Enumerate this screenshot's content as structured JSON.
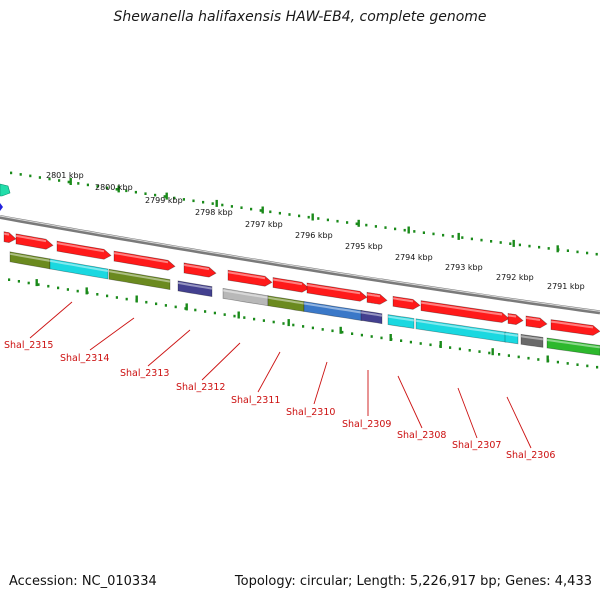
{
  "title": "Shewanella halifaxensis HAW-EB4, complete genome",
  "footer": {
    "accession": "Accession: NC_010334",
    "summary": "Topology: circular; Length: 5,226,917 bp; Genes: 4,433"
  },
  "colors": {
    "red": "#ff1a1a",
    "olive": "#6b8a1f",
    "cyan": "#1ad8e0",
    "navy": "#43408f",
    "gray": "#b8b8b8",
    "blue": "#3a78c8",
    "green": "#2db82d",
    "label": "#cc1111",
    "tick": "#1a8a1a",
    "backbone": "#7a7a7a"
  },
  "scale_labels": [
    "2801 kbp",
    "2800 kbp",
    "2799 kbp",
    "2798 kbp",
    "2797 kbp",
    "2796 kbp",
    "2795 kbp",
    "2794 kbp",
    "2793 kbp",
    "2792 kbp",
    "2791 kbp"
  ],
  "genes": [
    {
      "label": "Shal_2315"
    },
    {
      "label": "Shal_2314"
    },
    {
      "label": "Shal_2313"
    },
    {
      "label": "Shal_2312"
    },
    {
      "label": "Shal_2311"
    },
    {
      "label": "Shal_2310"
    },
    {
      "label": "Shal_2309"
    },
    {
      "label": "Shal_2308"
    },
    {
      "label": "Shal_2307"
    },
    {
      "label": "Shal_2306"
    }
  ]
}
